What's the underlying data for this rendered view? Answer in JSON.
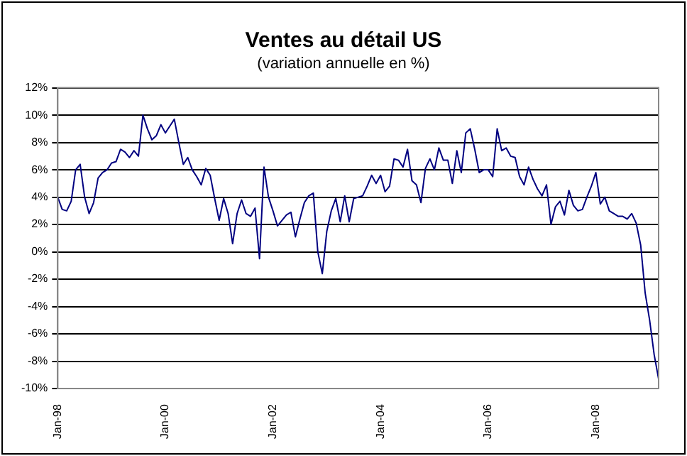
{
  "chart_data": {
    "type": "line",
    "title": "Ventes au détail US",
    "subtitle": "(variation annuelle en %)",
    "categories": [
      "Jan-98",
      null,
      null,
      null,
      null,
      null,
      null,
      null,
      null,
      null,
      null,
      null,
      null,
      null,
      null,
      null,
      null,
      null,
      null,
      null,
      null,
      null,
      null,
      null,
      "Jan-00",
      null,
      null,
      null,
      null,
      null,
      null,
      null,
      null,
      null,
      null,
      null,
      null,
      null,
      null,
      null,
      null,
      null,
      null,
      null,
      null,
      null,
      null,
      null,
      "Jan-02",
      null,
      null,
      null,
      null,
      null,
      null,
      null,
      null,
      null,
      null,
      null,
      null,
      null,
      null,
      null,
      null,
      null,
      null,
      null,
      null,
      null,
      null,
      null,
      "Jan-04",
      null,
      null,
      null,
      null,
      null,
      null,
      null,
      null,
      null,
      null,
      null,
      null,
      null,
      null,
      null,
      null,
      null,
      null,
      null,
      null,
      null,
      null,
      null,
      "Jan-06",
      null,
      null,
      null,
      null,
      null,
      null,
      null,
      null,
      null,
      null,
      null,
      null,
      null,
      null,
      null,
      null,
      null,
      null,
      null,
      null,
      null,
      null,
      null,
      "Jan-08",
      null,
      null,
      null,
      null,
      null,
      null,
      null,
      null,
      null,
      null,
      null,
      null,
      null,
      null
    ],
    "series": [
      {
        "color": "#000080",
        "values": [
          4.0,
          3.1,
          3.0,
          3.7,
          6.0,
          6.4,
          4.0,
          2.8,
          3.6,
          5.4,
          5.8,
          6.0,
          6.5,
          6.6,
          7.5,
          7.3,
          6.9,
          7.4,
          7.0,
          10.0,
          9.0,
          8.2,
          8.5,
          9.3,
          8.7,
          9.2,
          9.7,
          8.0,
          6.4,
          6.9,
          6.0,
          5.5,
          4.9,
          6.1,
          5.6,
          3.9,
          2.3,
          3.9,
          2.8,
          0.6,
          2.8,
          3.8,
          2.8,
          2.6,
          3.2,
          -0.5,
          6.2,
          4.0,
          3.0,
          1.9,
          2.3,
          2.7,
          2.9,
          1.1,
          2.4,
          3.6,
          4.1,
          4.3,
          0.0,
          -1.6,
          1.5,
          3.0,
          3.9,
          2.2,
          4.1,
          2.2,
          3.9,
          4.0,
          4.1,
          4.8,
          5.6,
          5.0,
          5.6,
          4.4,
          4.8,
          6.8,
          6.7,
          6.2,
          7.5,
          5.2,
          4.9,
          3.6,
          6.1,
          6.8,
          6.0,
          7.6,
          6.7,
          6.7,
          5.0,
          7.4,
          5.8,
          8.7,
          9.0,
          7.5,
          5.8,
          6.0,
          6.0,
          5.5,
          9.0,
          7.4,
          7.6,
          7.0,
          6.9,
          5.5,
          4.9,
          6.2,
          5.3,
          4.6,
          4.1,
          4.9,
          2.0,
          3.3,
          3.7,
          2.7,
          4.5,
          3.4,
          3.0,
          3.1,
          4.0,
          4.8,
          5.8,
          3.5,
          4.0,
          3.0,
          2.8,
          2.6,
          2.6,
          2.4,
          2.8,
          2.1,
          0.5,
          -3.0,
          -5.0,
          -7.5,
          -9.3
        ]
      }
    ],
    "ylim": [
      -10,
      12
    ],
    "yticks": [
      {
        "value": -10,
        "label": "-10%"
      },
      {
        "value": -8,
        "label": "-8%"
      },
      {
        "value": -6,
        "label": "-6%"
      },
      {
        "value": -4,
        "label": "-4%"
      },
      {
        "value": -2,
        "label": "-2%"
      },
      {
        "value": 0,
        "label": "0%"
      },
      {
        "value": 2,
        "label": "2%"
      },
      {
        "value": 4,
        "label": "4%"
      },
      {
        "value": 6,
        "label": "6%"
      },
      {
        "value": 8,
        "label": "8%"
      },
      {
        "value": 10,
        "label": "10%"
      },
      {
        "value": 12,
        "label": "12%"
      }
    ],
    "grid": "y",
    "marker": "none",
    "line_style": "solid"
  }
}
